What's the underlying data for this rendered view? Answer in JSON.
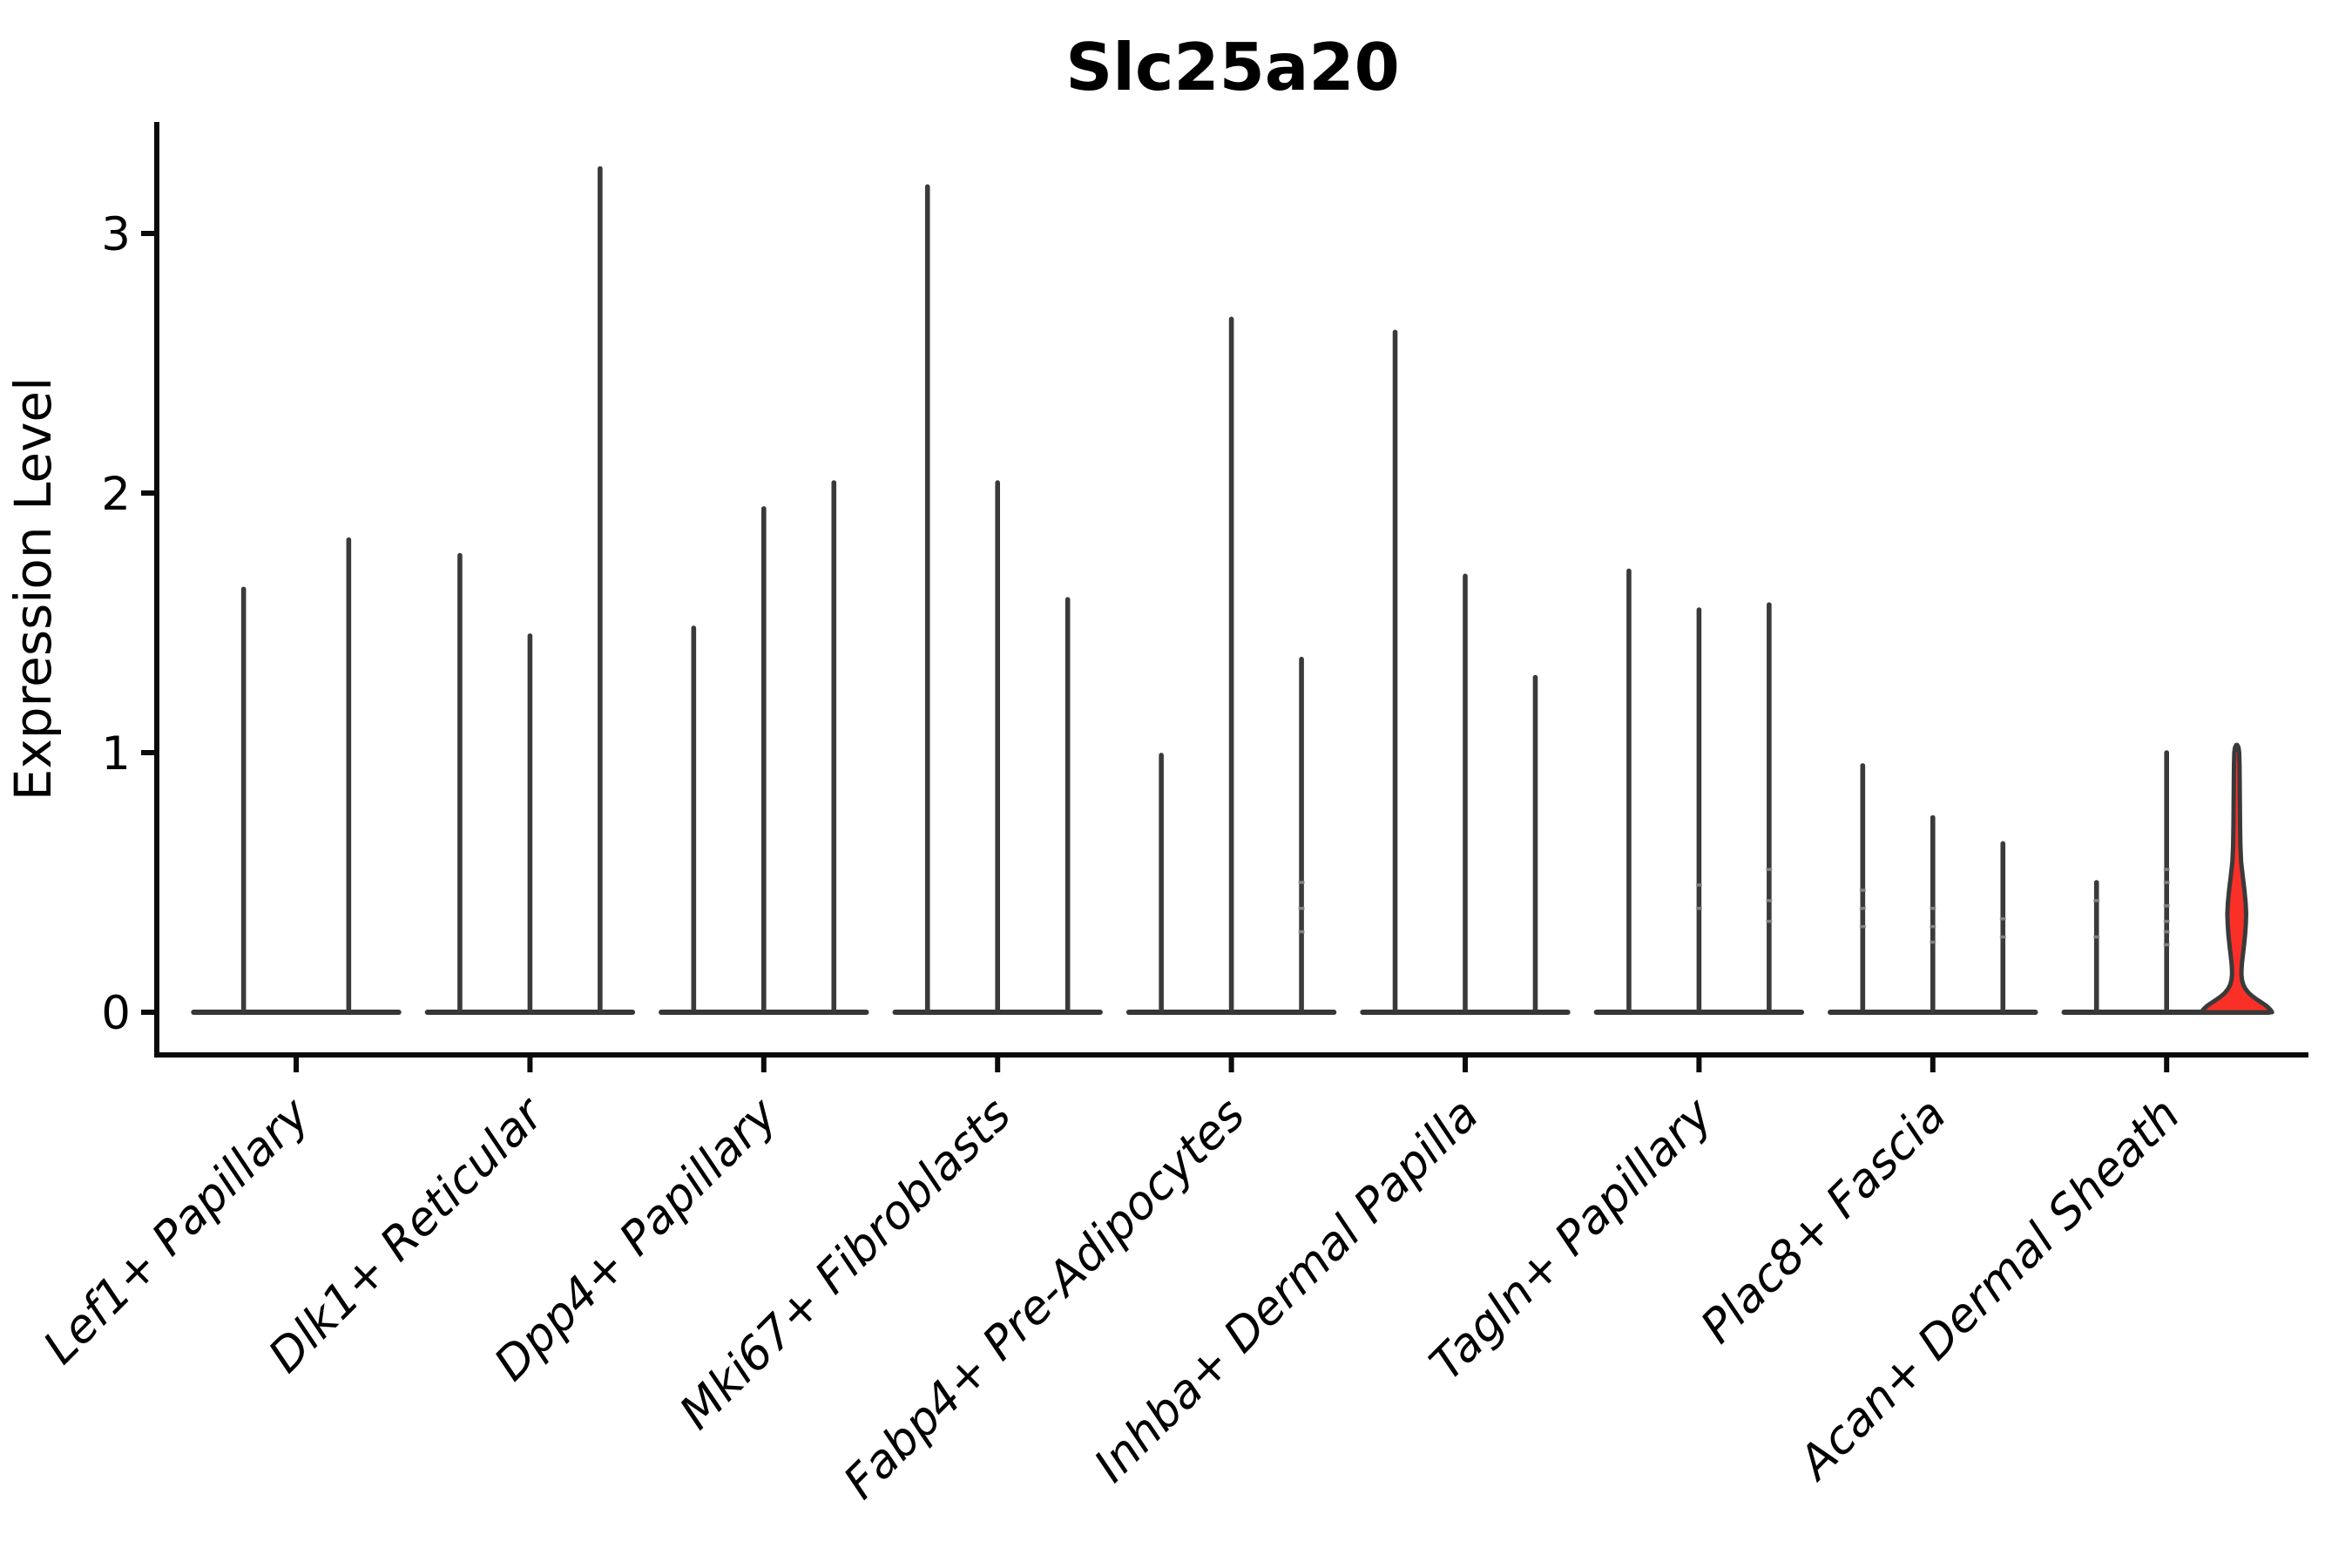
{
  "colors": {
    "background": "#ffffff",
    "axis": "#0b0b0b",
    "violin_outline": "#3a3a3a",
    "baseline": "#363636",
    "highlight_fill": "#fa3028",
    "notch_mark": "#8d8d8d",
    "text": "#000000"
  },
  "chart_data": {
    "type": "violin",
    "title": "Slc25a20",
    "ylabel": "Expression Level",
    "xlabel": "",
    "ylim": [
      0,
      3.44
    ],
    "yticks": [
      0,
      1,
      2,
      3
    ],
    "grid": false,
    "legend": "none",
    "categories": [
      "Lef1+ Papillary",
      "Dlk1+ Reticular",
      "Dpp4+ Papillary",
      "Mki67+ Fibroblasts",
      "Fabp4+ Pre-Adipocytes",
      "Inhba+ Dermal Papilla",
      "Tagln+ Papillary",
      "Plac8+ Fascia",
      "Acan+ Dermal Sheath"
    ],
    "groups": [
      {
        "label": "Lef1+ Papillary",
        "violins": [
          {
            "max": 1.63
          },
          {
            "max": 1.82
          }
        ]
      },
      {
        "label": "Dlk1+ Reticular",
        "violins": [
          {
            "max": 1.76
          },
          {
            "max": 1.45
          },
          {
            "max": 3.25
          }
        ]
      },
      {
        "label": "Dpp4+ Papillary",
        "violins": [
          {
            "max": 1.48
          },
          {
            "max": 1.94
          },
          {
            "max": 2.04
          }
        ]
      },
      {
        "label": "Mki67+ Fibroblasts",
        "violins": [
          {
            "max": 3.18
          },
          {
            "max": 2.04
          },
          {
            "max": 1.59
          }
        ]
      },
      {
        "label": "Fabp4+ Pre-Adipocytes",
        "violins": [
          {
            "max": 0.99
          },
          {
            "max": 2.67
          },
          {
            "max": 1.36,
            "notches": [
              0.5,
              0.4,
              0.31
            ]
          }
        ]
      },
      {
        "label": "Inhba+ Dermal Papilla",
        "violins": [
          {
            "max": 2.62
          },
          {
            "max": 1.68
          },
          {
            "max": 1.29
          }
        ]
      },
      {
        "label": "Tagln+ Papillary",
        "violins": [
          {
            "max": 1.7
          },
          {
            "max": 1.55,
            "notches": [
              0.49,
              0.4
            ]
          },
          {
            "max": 1.57,
            "notches": [
              0.55,
              0.43,
              0.35
            ]
          }
        ]
      },
      {
        "label": "Plac8+ Fascia",
        "violins": [
          {
            "max": 0.95,
            "notches": [
              0.47,
              0.4,
              0.33
            ]
          },
          {
            "max": 0.75,
            "notches": [
              0.4,
              0.33,
              0.27
            ]
          },
          {
            "max": 0.65,
            "notches": [
              0.36,
              0.29
            ]
          }
        ]
      },
      {
        "label": "Acan+ Dermal Sheath",
        "violins": [
          {
            "max": 0.5,
            "notches": [
              0.43,
              0.29
            ]
          },
          {
            "max": 1.0,
            "notches": [
              0.55,
              0.5,
              0.41,
              0.35,
              0.31,
              0.26
            ]
          },
          {
            "max": 1.03,
            "highlight": true
          }
        ]
      }
    ],
    "highlight_violin": {
      "group": "Acan+ Dermal Sheath",
      "position": 3,
      "fill": "#fa3028",
      "profile": [
        [
          1.03,
          0.5
        ],
        [
          1.02,
          2.0
        ],
        [
          1.0,
          2.8
        ],
        [
          0.95,
          3.2
        ],
        [
          0.88,
          3.4
        ],
        [
          0.8,
          3.6
        ],
        [
          0.72,
          3.8
        ],
        [
          0.64,
          4.2
        ],
        [
          0.58,
          5.0
        ],
        [
          0.52,
          7.0
        ],
        [
          0.47,
          8.8
        ],
        [
          0.42,
          10.2
        ],
        [
          0.38,
          10.8
        ],
        [
          0.34,
          10.4
        ],
        [
          0.3,
          9.6
        ],
        [
          0.26,
          8.4
        ],
        [
          0.22,
          7.0
        ],
        [
          0.19,
          6.0
        ],
        [
          0.165,
          5.5
        ],
        [
          0.145,
          5.4
        ],
        [
          0.125,
          6.0
        ],
        [
          0.105,
          7.6
        ],
        [
          0.09,
          10.0
        ],
        [
          0.075,
          13.5
        ],
        [
          0.06,
          18.5
        ],
        [
          0.047,
          24.0
        ],
        [
          0.035,
          29.5
        ],
        [
          0.023,
          34.5
        ],
        [
          0.012,
          38.0
        ],
        [
          0.004,
          39.8
        ],
        [
          0.0,
          40.5
        ]
      ]
    }
  }
}
